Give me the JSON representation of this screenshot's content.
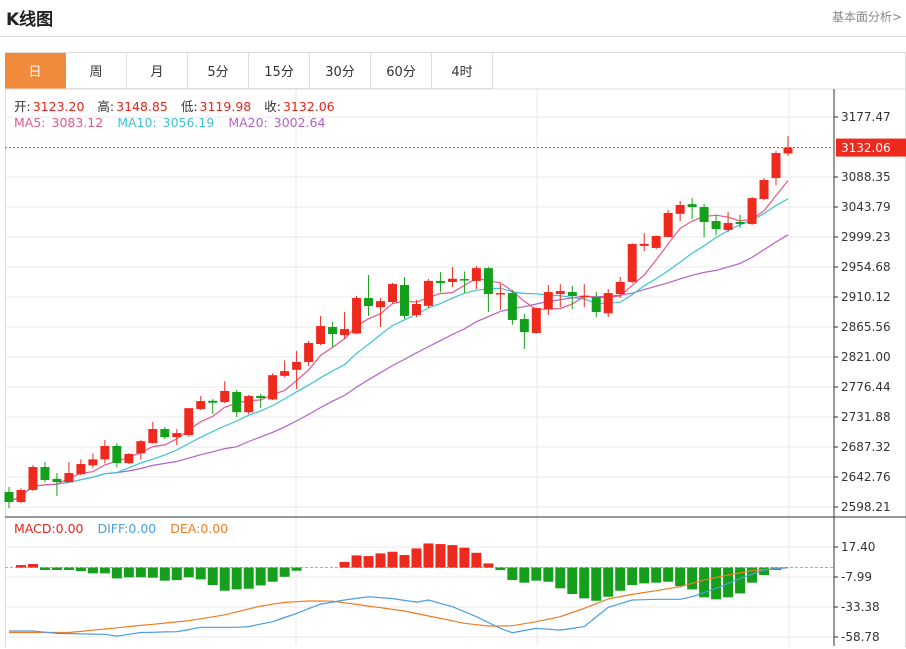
{
  "header": {
    "title": "K线图",
    "fundamental_link": "基本面分析>"
  },
  "tabs": [
    {
      "label": "日",
      "active": true
    },
    {
      "label": "周"
    },
    {
      "label": "月"
    },
    {
      "label": "5分"
    },
    {
      "label": "15分"
    },
    {
      "label": "30分"
    },
    {
      "label": "60分"
    },
    {
      "label": "4时"
    }
  ],
  "ohlc_legend": {
    "open_label": "开:",
    "open": "3123.20",
    "high_label": "高:",
    "high": "3148.85",
    "low_label": "低:",
    "low": "3119.98",
    "close_label": "收:",
    "close": "3132.06"
  },
  "ma_legend": {
    "ma5_label": "MA5:",
    "ma5": "3083.12",
    "ma10_label": "MA10:",
    "ma10": "3056.19",
    "ma20_label": "MA20:",
    "ma20": "3002.64"
  },
  "macd_legend": {
    "macd": "MACD:0.00",
    "diff": "DIFF:0.00",
    "dea": "DEA:0.00"
  },
  "colors": {
    "up": "#ee2a1f",
    "down": "#14a01b",
    "ma5": "#e5588c",
    "ma10": "#3cc3d2",
    "ma20": "#b262c6",
    "diff": "#4a9de0",
    "dea": "#f07c22",
    "active_tab": "#f18b3b"
  },
  "chart_data": {
    "type": "candlestick",
    "price_axis_ticks": [
      "3177.47",
      "3088.35",
      "3043.79",
      "2999.23",
      "2954.68",
      "2910.12",
      "2865.56",
      "2821.00",
      "2776.44",
      "2731.88",
      "2687.32",
      "2642.76",
      "2598.21"
    ],
    "last_price": "3132.06",
    "ylim": [
      2598.21,
      3177.47
    ],
    "candles": [
      [
        2620.5,
        2627.9,
        2596.7,
        2605.6
      ],
      [
        2605.6,
        2626,
        2604,
        2623.5
      ],
      [
        2623.5,
        2660.6,
        2622,
        2657.6
      ],
      [
        2657.6,
        2665,
        2635,
        2638.3
      ],
      [
        2640,
        2648.7,
        2614.5,
        2635.3
      ],
      [
        2635,
        2665,
        2635,
        2648.7
      ],
      [
        2647,
        2669,
        2645,
        2662
      ],
      [
        2660,
        2678,
        2656,
        2669
      ],
      [
        2669,
        2697.7,
        2663,
        2688.8
      ],
      [
        2688.8,
        2693,
        2657,
        2663.5
      ],
      [
        2663.5,
        2678,
        2662,
        2677
      ],
      [
        2678,
        2697.7,
        2669,
        2696
      ],
      [
        2693.3,
        2724.5,
        2692,
        2714
      ],
      [
        2714,
        2717,
        2699,
        2702
      ],
      [
        2702,
        2714,
        2690,
        2708
      ],
      [
        2705,
        2745.3,
        2703,
        2745
      ],
      [
        2743.8,
        2763,
        2742,
        2755.6
      ],
      [
        2756,
        2758.6,
        2736,
        2753
      ],
      [
        2754,
        2785,
        2752.6,
        2770.5
      ],
      [
        2769,
        2772,
        2732,
        2739
      ],
      [
        2739,
        2764.6,
        2736,
        2763
      ],
      [
        2763,
        2766,
        2745,
        2760
      ],
      [
        2758,
        2797,
        2757,
        2794
      ],
      [
        2793,
        2816,
        2791,
        2800
      ],
      [
        2802,
        2830,
        2773.5,
        2813.6
      ],
      [
        2813.6,
        2844.8,
        2807.7,
        2841.8
      ],
      [
        2840.3,
        2882,
        2838.8,
        2867
      ],
      [
        2865.6,
        2873,
        2836,
        2855
      ],
      [
        2853.6,
        2887.8,
        2849,
        2862.5
      ],
      [
        2856,
        2911.6,
        2855,
        2908.6
      ],
      [
        2908.6,
        2942.8,
        2882,
        2896.7
      ],
      [
        2895,
        2908.6,
        2865.6,
        2904
      ],
      [
        2902.7,
        2931,
        2901,
        2929.4
      ],
      [
        2928,
        2939.8,
        2877.4,
        2882
      ],
      [
        2883.4,
        2905.6,
        2880.4,
        2899.7
      ],
      [
        2897,
        2936.8,
        2893.7,
        2934
      ],
      [
        2934,
        2947,
        2917,
        2931
      ],
      [
        2932.5,
        2954.7,
        2925,
        2937.3
      ],
      [
        2936.8,
        2948,
        2916,
        2935
      ],
      [
        2933.9,
        2956,
        2922,
        2953
      ],
      [
        2953,
        2955,
        2887.8,
        2914.6
      ],
      [
        2914.6,
        2929.4,
        2890.8,
        2916
      ],
      [
        2916,
        2920.5,
        2868.6,
        2876
      ],
      [
        2877.4,
        2885,
        2833,
        2858
      ],
      [
        2856.6,
        2894,
        2856,
        2893.7
      ],
      [
        2892,
        2928,
        2883.4,
        2917.5
      ],
      [
        2914.6,
        2929,
        2895,
        2918.9
      ],
      [
        2917.5,
        2926.5,
        2892,
        2911.6
      ],
      [
        2911,
        2929,
        2895,
        2912
      ],
      [
        2910,
        2917.5,
        2880,
        2887.8
      ],
      [
        2886,
        2922,
        2880.4,
        2916
      ],
      [
        2914.6,
        2940,
        2908.6,
        2932.5
      ],
      [
        2932.5,
        2990,
        2931,
        2988.8
      ],
      [
        2986,
        3005,
        2978.4,
        2989
      ],
      [
        2983,
        3002,
        2981,
        3000.7
      ],
      [
        2999.2,
        3039.4,
        2999,
        3035
      ],
      [
        3033.7,
        3052.7,
        3023,
        3046.8
      ],
      [
        3048,
        3057,
        3026,
        3043.8
      ],
      [
        3043.8,
        3048.3,
        2999,
        3021.5
      ],
      [
        3023,
        3032,
        3002,
        3011
      ],
      [
        3009.6,
        3036.4,
        3006.7,
        3020
      ],
      [
        3021.5,
        3032,
        3013,
        3018.6
      ],
      [
        3018.6,
        3058.6,
        3017,
        3057
      ],
      [
        3055.7,
        3086.8,
        3054,
        3083.9
      ],
      [
        3086.8,
        3127,
        3076,
        3124
      ],
      [
        3123.2,
        3148.85,
        3119.98,
        3132.06
      ]
    ],
    "macd_axis_ticks": [
      "17.40",
      "-7.99",
      "-33.38",
      "-58.78"
    ],
    "macd_ylim": [
      -58.78,
      17.4
    ],
    "macd_hist": [
      0,
      2.1,
      3.0,
      -2.1,
      -2.1,
      -2.1,
      -3.0,
      -4.9,
      -4.9,
      -9.2,
      -8.3,
      -8.3,
      -8.6,
      -11.1,
      -10.6,
      -8.3,
      -10.0,
      -14.8,
      -19.6,
      -18.5,
      -17.9,
      -15.1,
      -12.0,
      -7.8,
      -2.7,
      0,
      0,
      0,
      4.7,
      10.3,
      9.7,
      12.0,
      13.4,
      10.6,
      16.2,
      20.4,
      19.9,
      19.0,
      16.8,
      12.5,
      3.5,
      -2.1,
      -10.6,
      -12.8,
      -11.1,
      -12.0,
      -17.6,
      -22.4,
      -26.1,
      -28.1,
      -24.7,
      -19.6,
      -14.8,
      -13.4,
      -12.8,
      -12.0,
      -15.7,
      -18.5,
      -25.2,
      -26.9,
      -25.2,
      -21.9,
      -12.8,
      -6.3,
      -2.1,
      0
    ],
    "diff": [
      -53.7,
      -53.7,
      -53.7,
      -54.7,
      -55.7,
      -55.9,
      -56.1,
      -56.3,
      -56.5,
      -58,
      -56.5,
      -55,
      -54.8,
      -54.5,
      -54.3,
      -52.5,
      -50.6,
      -50.6,
      -50.6,
      -50.6,
      -50,
      -47.9,
      -45.8,
      -42.3,
      -38.8,
      -34.8,
      -30.9,
      -29.2,
      -27.5,
      -26.1,
      -24.7,
      -25.5,
      -26.3,
      -27.8,
      -29.2,
      -27.5,
      -30.3,
      -33.1,
      -37.4,
      -41.6,
      -46.5,
      -51.5,
      -55.1,
      -53.3,
      -51.5,
      -52.2,
      -52.9,
      -51.5,
      -50,
      -41.8,
      -33.7,
      -30.6,
      -27.5,
      -27.2,
      -26.9,
      -26.9,
      -26.9,
      -24.7,
      -21.2,
      -17.6,
      -13.4,
      -9.2,
      -5.6,
      -2.1,
      -1,
      0
    ],
    "dea": [
      -55,
      -55,
      -55,
      -55,
      -55,
      -55,
      -54,
      -53,
      -52,
      -51,
      -50,
      -49,
      -48,
      -47,
      -46,
      -45,
      -43.3,
      -41.7,
      -40,
      -37.5,
      -35,
      -32.6,
      -31,
      -29.5,
      -28.9,
      -28.3,
      -28.3,
      -28.5,
      -29.8,
      -31.2,
      -32.6,
      -34,
      -35.4,
      -36.8,
      -38.9,
      -41,
      -43,
      -45.1,
      -47.2,
      -48.4,
      -49.5,
      -49.5,
      -49.2,
      -47.5,
      -45.8,
      -43.7,
      -41.6,
      -38,
      -34.5,
      -30.5,
      -26.6,
      -24.6,
      -22.7,
      -21.1,
      -19.6,
      -17.9,
      -16.2,
      -13.4,
      -10.6,
      -8.4,
      -6.3,
      -4.5,
      -2.7,
      -1.8,
      -0.9,
      0
    ],
    "grid": true
  }
}
